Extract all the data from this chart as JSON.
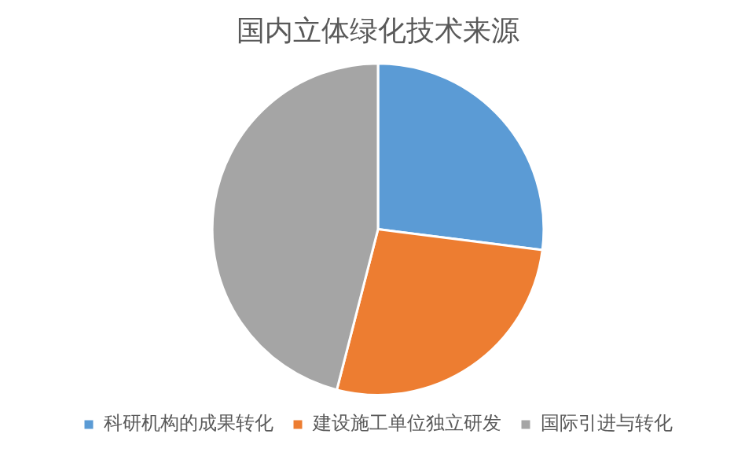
{
  "chart_data": {
    "type": "pie",
    "title": "国内立体绿化技术来源",
    "categories": [
      "科研机构的成果转化",
      "建设施工单位独立研发",
      "国际引进与转化"
    ],
    "values": [
      27,
      27,
      46
    ],
    "colors": [
      "#5b9bd5",
      "#ed7d31",
      "#a5a5a5"
    ],
    "legend": "bottom"
  }
}
